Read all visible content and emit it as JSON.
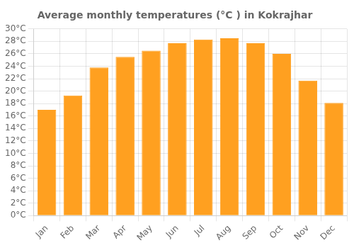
{
  "chart_data": {
    "type": "bar",
    "title": "Average monthly temperatures (°C ) in Kokrajhar",
    "categories": [
      "Jan",
      "Feb",
      "Mar",
      "Apr",
      "May",
      "Jun",
      "Jul",
      "Aug",
      "Sep",
      "Oct",
      "Nov",
      "Dec"
    ],
    "values": [
      17,
      19.3,
      23.8,
      25.5,
      26.5,
      27.7,
      28.3,
      28.5,
      27.7,
      26.0,
      21.7,
      18.1
    ],
    "color": "#FFA020",
    "ylim": [
      0,
      30
    ],
    "yticks": [
      {
        "value": 0,
        "label": "0°C"
      },
      {
        "value": 2,
        "label": "2°C"
      },
      {
        "value": 4,
        "label": "4°C"
      },
      {
        "value": 6,
        "label": "6°C"
      },
      {
        "value": 8,
        "label": "8°C"
      },
      {
        "value": 10,
        "label": "10°C"
      },
      {
        "value": 12,
        "label": "12°C"
      },
      {
        "value": 14,
        "label": "14°C"
      },
      {
        "value": 16,
        "label": "16°C"
      },
      {
        "value": 18,
        "label": "18°C"
      },
      {
        "value": 20,
        "label": "20°C"
      },
      {
        "value": 22,
        "label": "22°C"
      },
      {
        "value": 24,
        "label": "24°C"
      },
      {
        "value": 26,
        "label": "26°C"
      },
      {
        "value": 28,
        "label": "28°C"
      },
      {
        "value": 30,
        "label": "30°C"
      }
    ],
    "grid": true
  }
}
